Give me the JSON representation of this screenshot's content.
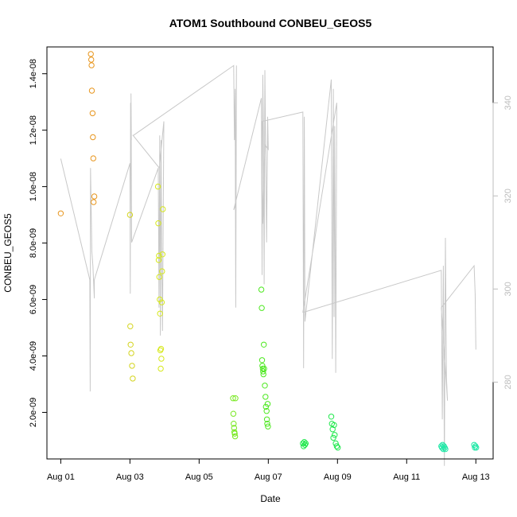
{
  "chart_data": {
    "type": "scatter",
    "title": "ATOM1 Southbound CONBEU_GEOS5",
    "xlabel": "Date",
    "ylabel": "CONBEU_GEOS5",
    "x_ticks": [
      "Aug 01",
      "Aug 03",
      "Aug 05",
      "Aug 07",
      "Aug 09",
      "Aug 11",
      "Aug 13"
    ],
    "x_tick_days": [
      1,
      3,
      5,
      7,
      9,
      11,
      13
    ],
    "xlim_days": [
      0.6,
      13.5
    ],
    "y_ticks": [
      "2.0e-09",
      "4.0e-09",
      "6.0e-09",
      "8.0e-09",
      "1.0e-08",
      "1.2e-08",
      "1.4e-08"
    ],
    "y_tick_values": [
      2e-09,
      4e-09,
      6e-09,
      8e-09,
      1e-08,
      1.2e-08,
      1.4e-08
    ],
    "ylim": [
      3.5e-10,
      1.495e-08
    ],
    "y2_ticks": [
      "280",
      "300",
      "320",
      "340"
    ],
    "y2_tick_values": [
      280,
      300,
      320,
      340
    ],
    "y2lim": [
      263.5,
      352
    ],
    "series": [
      {
        "color": "#E8961E",
        "x": [
          1.0,
          1.87,
          1.88,
          1.89,
          1.9,
          1.92,
          1.93,
          1.94,
          1.95,
          1.97
        ],
        "y": [
          9.05e-09,
          1.47e-08,
          1.45e-08,
          1.43e-08,
          1.34e-08,
          1.26e-08,
          1.175e-08,
          1.1e-08,
          9.45e-09,
          9.65e-09
        ]
      },
      {
        "color": "#D4D41E",
        "x": [
          3.0,
          3.01,
          3.02,
          3.04,
          3.06,
          3.08
        ],
        "y": [
          9e-09,
          5.05e-09,
          4.4e-09,
          4.1e-09,
          3.65e-09,
          3.2e-09
        ]
      },
      {
        "color": "#D6E81C",
        "x": [
          3.81,
          3.82,
          3.83,
          3.84,
          3.85,
          3.86,
          3.87,
          3.88,
          3.89,
          3.9,
          3.91,
          3.92,
          3.93,
          3.94,
          3.95
        ],
        "y": [
          1e-08,
          8.7e-09,
          7.4e-09,
          7.55e-09,
          6.8e-09,
          6e-09,
          5.5e-09,
          4.2e-09,
          3.55e-09,
          4.25e-09,
          3.9e-09,
          5.9e-09,
          7e-09,
          7.6e-09,
          9.2e-09
        ]
      },
      {
        "color": "#76E81E",
        "x": [
          5.98,
          5.99,
          6.0,
          6.01,
          6.02,
          6.03,
          6.04,
          6.05
        ],
        "y": [
          2.5e-09,
          1.95e-09,
          1.6e-09,
          1.45e-09,
          1.3e-09,
          1.25e-09,
          1.15e-09,
          2.5e-09
        ]
      },
      {
        "color": "#4CE81E",
        "x": [
          6.8,
          6.81,
          6.82,
          6.83,
          6.84,
          6.85,
          6.86,
          6.87,
          6.88,
          6.9,
          6.92,
          6.93,
          6.95,
          6.96,
          6.97,
          6.98,
          6.99
        ],
        "y": [
          6.35e-09,
          5.7e-09,
          3.85e-09,
          3.65e-09,
          3.55e-09,
          3.45e-09,
          3.35e-09,
          4.4e-09,
          3.55e-09,
          2.95e-09,
          2.55e-09,
          2.2e-09,
          2.05e-09,
          1.75e-09,
          1.6e-09,
          2.3e-09,
          1.5e-09
        ]
      },
      {
        "color": "#1EE84B",
        "x": [
          8.0,
          8.02,
          8.04,
          8.06,
          8.08,
          8.82,
          8.84,
          8.86,
          8.88,
          8.9,
          8.92,
          8.95,
          8.98,
          9.01
        ],
        "y": [
          9e-10,
          8e-10,
          9.5e-10,
          8.5e-10,
          9e-10,
          1.85e-09,
          1.6e-09,
          1.4e-09,
          1.1e-09,
          1.55e-09,
          1.2e-09,
          9e-10,
          8e-10,
          7.5e-10
        ]
      },
      {
        "color": "#1EE8A6",
        "x": [
          12.0,
          12.02,
          12.04,
          12.06,
          12.08,
          12.1,
          12.12,
          12.95,
          12.97,
          12.99,
          13.01
        ],
        "y": [
          8e-10,
          7.5e-10,
          8.5e-10,
          7e-10,
          8e-10,
          7.5e-10,
          7e-10,
          8.5e-10,
          7.5e-10,
          8e-10,
          7.5e-10
        ]
      }
    ],
    "overlay_line": {
      "color": "#c8c8c8",
      "x": [
        1.0,
        1.84,
        1.85,
        1.86,
        1.9,
        1.93,
        1.97,
        1.97,
        3.0,
        3.01,
        3.02,
        3.04,
        3.03,
        3.05,
        3.82,
        3.84,
        3.86,
        3.88,
        3.9,
        3.92,
        3.94,
        3.96,
        3.98,
        3.85,
        3.09,
        3.1,
        6.0,
        6.02,
        6.04,
        6.06,
        6.08,
        6.05,
        6.0,
        6.8,
        6.82,
        6.84,
        6.86,
        6.88,
        6.9,
        6.95,
        6.98,
        7.0,
        6.9,
        6.84,
        6.82,
        8.0,
        8.02,
        8.04,
        8.06,
        8.82,
        8.85,
        8.88,
        8.9,
        8.92,
        8.95,
        8.98,
        8.0,
        8.02,
        12.0,
        12.03,
        12.06,
        12.09,
        12.12,
        12.15,
        12.18,
        12.0,
        12.95,
        12.98,
        13.0
      ],
      "y": [
        328,
        302,
        278,
        326,
        308,
        305,
        298,
        302,
        327,
        299,
        340,
        332,
        342,
        310,
        326,
        296,
        333,
        290,
        332,
        305,
        291,
        313,
        336,
        326,
        333,
        333,
        348,
        332,
        343,
        296,
        348,
        318,
        317,
        341,
        303,
        346,
        334,
        301,
        347,
        310,
        337,
        330,
        331,
        314,
        336,
        338,
        283,
        337,
        293,
        345,
        285,
        343,
        294,
        335,
        282,
        340,
        295,
        295,
        304,
        272,
        305,
        262,
        311,
        281,
        276,
        296,
        305,
        299,
        287
      ]
    }
  }
}
